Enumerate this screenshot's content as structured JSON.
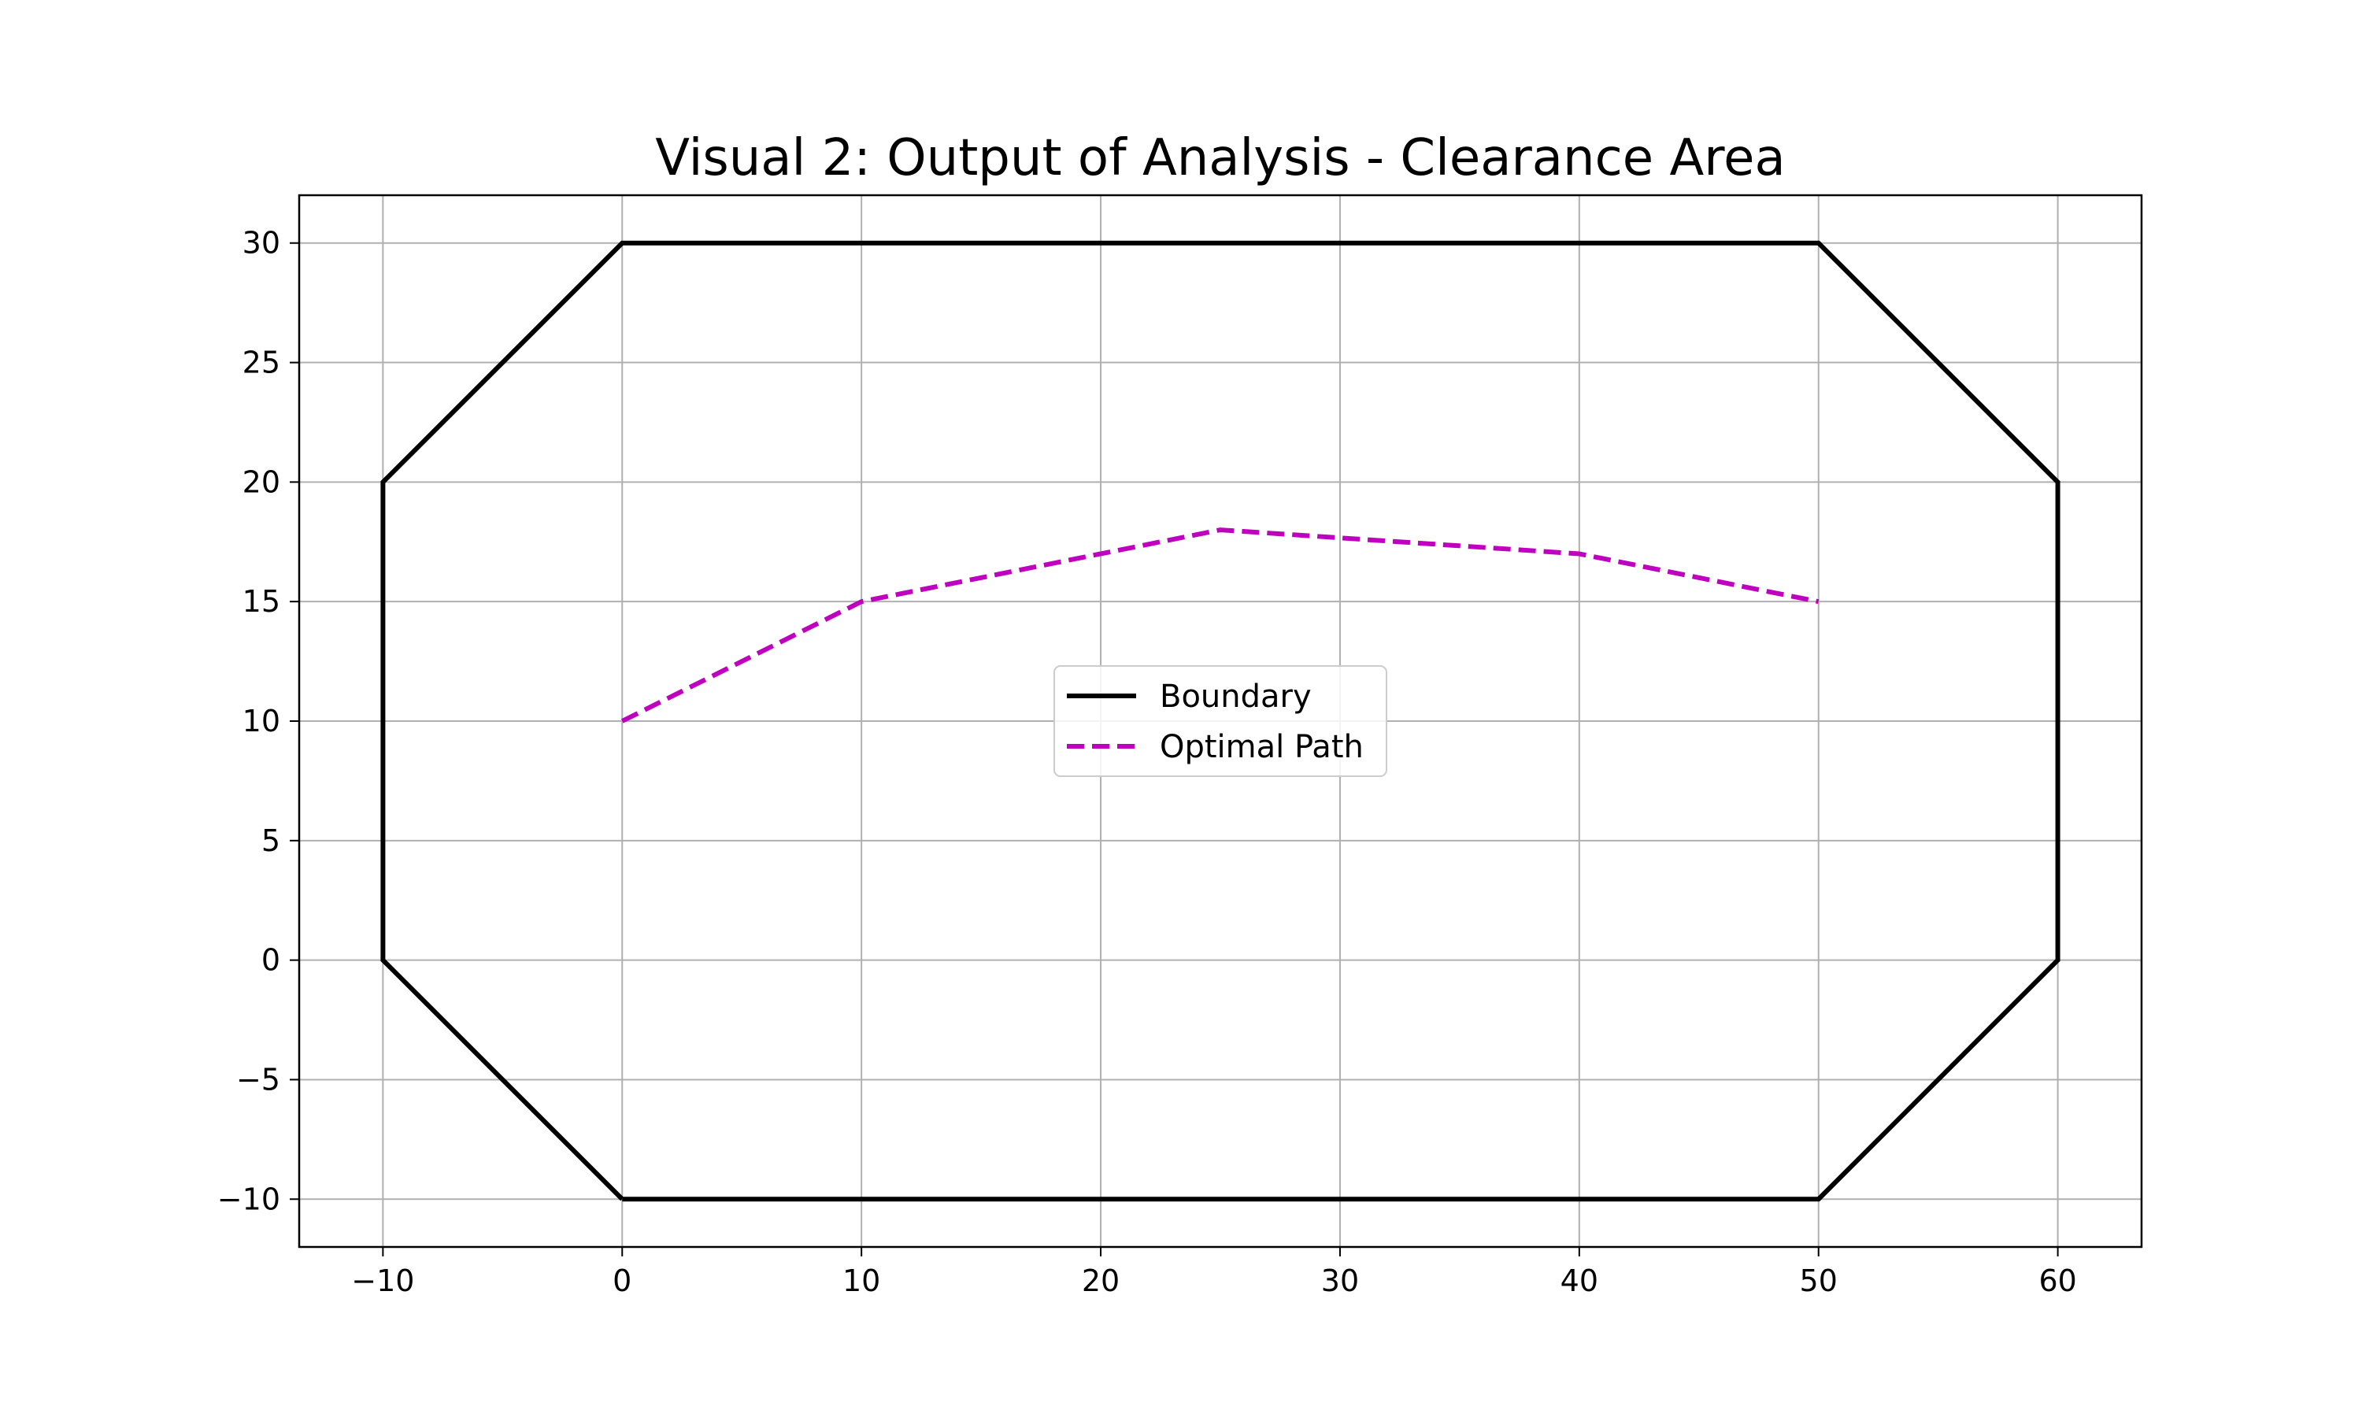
{
  "chart_data": {
    "type": "line",
    "title": "Visual 2: Output of Analysis - Clearance Area",
    "xlabel": "",
    "ylabel": "",
    "xlim": [
      -13.5,
      63.5
    ],
    "ylim": [
      -12,
      32
    ],
    "x_ticks": [
      -10,
      0,
      10,
      20,
      30,
      40,
      50,
      60
    ],
    "x_tick_labels": [
      "−10",
      "0",
      "10",
      "20",
      "30",
      "40",
      "50",
      "60"
    ],
    "y_ticks": [
      -10,
      -5,
      0,
      5,
      10,
      15,
      20,
      25,
      30
    ],
    "y_tick_labels": [
      "−10",
      "−5",
      "0",
      "5",
      "10",
      "15",
      "20",
      "25",
      "30"
    ],
    "grid": true,
    "legend_position": "center",
    "series": [
      {
        "name": "Boundary",
        "color": "#000000",
        "style": "solid",
        "x": [
          0,
          50,
          60,
          60,
          50,
          0,
          -10,
          -10,
          0
        ],
        "y": [
          -10,
          -10,
          0,
          20,
          30,
          30,
          20,
          0,
          -10
        ]
      },
      {
        "name": "Optimal Path",
        "color": "#bf00bf",
        "style": "dashed",
        "x": [
          0,
          10,
          25,
          40,
          50
        ],
        "y": [
          10,
          15,
          18,
          17,
          15
        ]
      }
    ]
  }
}
